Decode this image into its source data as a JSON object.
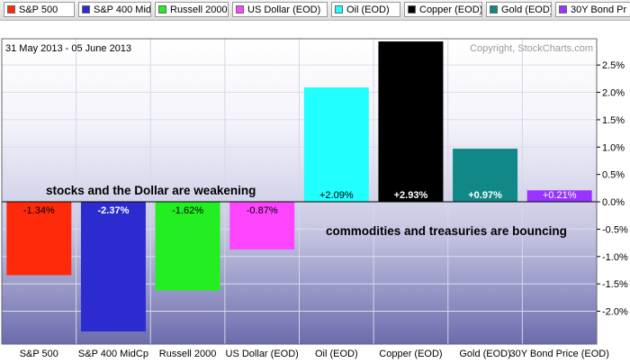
{
  "legend": [
    {
      "name": "S&P 500",
      "color": "#ff2a0a"
    },
    {
      "name": "S&P 400 MidCp",
      "color": "#2b2bd0"
    },
    {
      "name": "Russell 2000",
      "color": "#22ee22"
    },
    {
      "name": "US Dollar (EOD)",
      "color": "#ff44ff"
    },
    {
      "name": "Oil (EOD)",
      "color": "#22ffff"
    },
    {
      "name": "Copper (EOD)",
      "color": "#000000"
    },
    {
      "name": "Gold (EOD)",
      "color": "#118888"
    },
    {
      "name": "30Y Bond Pr",
      "color": "#9933ff"
    }
  ],
  "header": {
    "date_range": "31 May 2013 - 05 June 2013",
    "copyright": "Copyright, StockCharts.com"
  },
  "chart_data": {
    "type": "bar",
    "categories": [
      "S&P 500",
      "S&P 400 MidCp",
      "Russell 2000",
      "US Dollar (EOD)",
      "Oil (EOD)",
      "Copper (EOD)",
      "Gold (EOD)",
      "30Y Bond Price (EOD)"
    ],
    "values": [
      -1.34,
      -2.37,
      -1.62,
      -0.87,
      2.09,
      2.93,
      0.97,
      0.21
    ],
    "value_labels": [
      "-1.34%",
      "-2.37%",
      "-1.62%",
      "-0.87%",
      "+2.09%",
      "+2.93%",
      "+0.97%",
      "+0.21%"
    ],
    "colors": [
      "#ff2a0a",
      "#2b2bd0",
      "#22ee22",
      "#ff44ff",
      "#22ffff",
      "#000000",
      "#118888",
      "#9933ff"
    ],
    "ylim": [
      -2.6,
      2.98
    ],
    "y_ticks": [
      2.5,
      2.0,
      1.5,
      1.0,
      0.5,
      0.0,
      -0.5,
      -1.0,
      -1.5,
      -2.0
    ],
    "y_tick_labels": [
      "2.5%",
      "2.0%",
      "1.5%",
      "1.0%",
      "0.5%",
      "0.0%",
      "-0.5%",
      "-1.0%",
      "-1.5%",
      "-2.0%"
    ],
    "annotations": [
      "stocks and the Dollar are weakening",
      "commodities and treasuries are bouncing"
    ]
  }
}
